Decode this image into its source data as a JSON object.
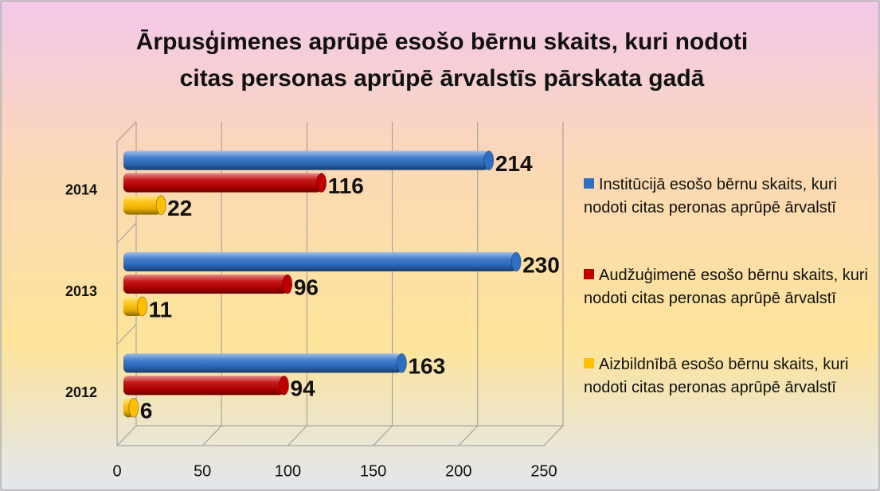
{
  "chart_data": {
    "type": "bar",
    "orientation": "horizontal",
    "title": "Ārpusģimenes aprūpē esošo bērnu skaits, kuri nodoti citas personas aprūpē ārvalstīs pārskata gadā",
    "categories": [
      "2012",
      "2013",
      "2014"
    ],
    "series": [
      {
        "name": "Institūcijā esošo bērnu skaits, kuri nodoti citas peronas aprūpē ārvalstī",
        "color": "#2e6fc6",
        "values": [
          163,
          230,
          214
        ]
      },
      {
        "name": "Audžuģimenē esošo bērnu skaits, kuri nodoti citas peronas aprūpē ārvalstī",
        "color": "#c00000",
        "values": [
          94,
          96,
          116
        ]
      },
      {
        "name": "Aizbildnībā esošo bērnu skaits, kuri nodoti citas peronas aprūpē ārvalstī",
        "color": "#ffc000",
        "values": [
          6,
          11,
          22
        ]
      }
    ],
    "xlim": [
      0,
      250
    ],
    "xticks": [
      0,
      50,
      100,
      150,
      200,
      250
    ],
    "grid": true,
    "legend": "right"
  }
}
